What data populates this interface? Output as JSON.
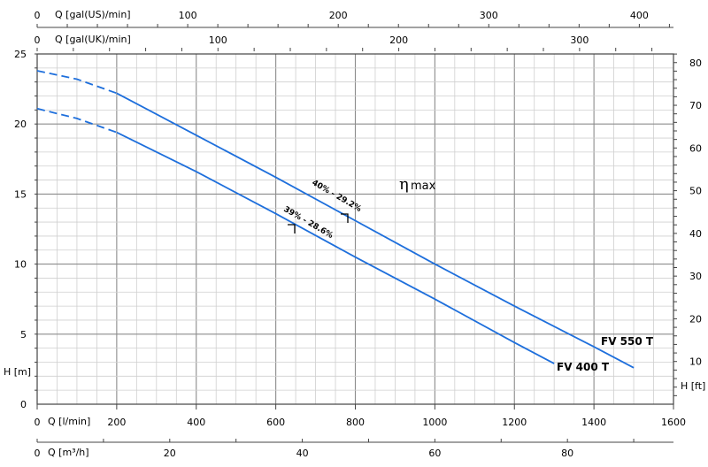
{
  "chart_data": {
    "type": "line",
    "x_axis": {
      "label": "Q [l/min]",
      "range": [
        0,
        1600
      ],
      "ticks": [
        0,
        200,
        400,
        600,
        800,
        1000,
        1200,
        1400,
        1600
      ]
    },
    "x_axis_m3h": {
      "label": "Q [m³/h]",
      "range": [
        0,
        96
      ],
      "ticks": [
        0,
        20,
        40,
        60,
        80
      ]
    },
    "x_axis_us": {
      "label": "Q [gal(US)/min]",
      "range": [
        0,
        422.7
      ],
      "ticks": [
        0,
        100,
        200,
        300,
        400
      ]
    },
    "x_axis_uk": {
      "label": "Q [gal(UK)/min]",
      "range": [
        0,
        351.95
      ],
      "ticks": [
        0,
        100,
        200,
        300
      ]
    },
    "y_axis": {
      "label": "H [m]",
      "range": [
        0,
        25
      ],
      "ticks": [
        0,
        5,
        10,
        15,
        20,
        25
      ]
    },
    "y_axis_ft": {
      "label": "H [ft]",
      "range": [
        0,
        82.02
      ],
      "ticks": [
        10,
        20,
        30,
        40,
        50,
        60,
        70,
        80
      ]
    },
    "grid": true,
    "series": [
      {
        "name": "FV 550 T",
        "color": "#1e6fdc",
        "dashed_segment": {
          "x": [
            0,
            100,
            200
          ],
          "y": [
            23.8,
            23.2,
            22.2
          ]
        },
        "x": [
          200,
          400,
          600,
          800,
          1000,
          1200,
          1400,
          1500
        ],
        "y": [
          22.2,
          19.2,
          16.2,
          13.1,
          10.0,
          7.0,
          4.1,
          2.6
        ]
      },
      {
        "name": "FV 400 T",
        "color": "#1e6fdc",
        "dashed_segment": {
          "x": [
            0,
            100,
            200
          ],
          "y": [
            21.1,
            20.4,
            19.4
          ]
        },
        "x": [
          200,
          400,
          600,
          800,
          1000,
          1200,
          1300
        ],
        "y": [
          19.4,
          16.6,
          13.6,
          10.5,
          7.5,
          4.4,
          2.9
        ]
      }
    ],
    "annotations": {
      "eta_symbol": "η",
      "eta_sub": "max",
      "eff_550": "40% - 29.2%",
      "eff_400": "39% - 28.6%"
    }
  }
}
